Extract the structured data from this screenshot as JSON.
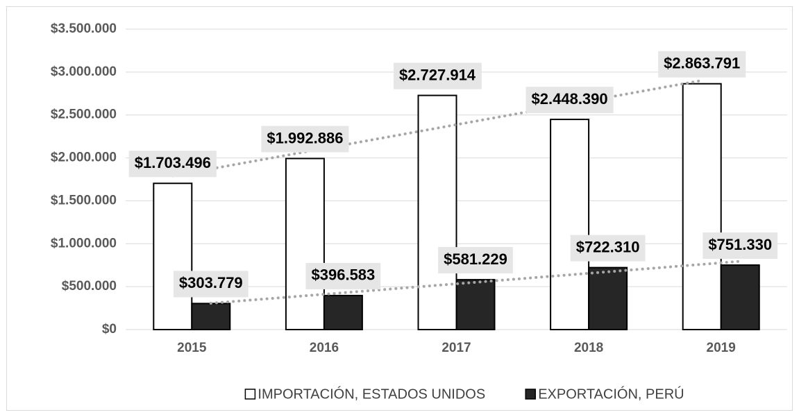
{
  "chart_data": {
    "type": "bar",
    "categories": [
      "2015",
      "2016",
      "2017",
      "2018",
      "2019"
    ],
    "series": [
      {
        "name": "IMPORTACIÓN, ESTADOS UNIDOS",
        "color": "#ffffff",
        "values": [
          1703496,
          1992886,
          2727914,
          2448390,
          2863791
        ],
        "value_labels": [
          "$1.703.496",
          "$1.992.886",
          "$2.727.914",
          "$2.448.390",
          "$2.863.791"
        ]
      },
      {
        "name": "EXPORTACIÓN, PERÚ",
        "color": "#262626",
        "values": [
          303779,
          396583,
          581229,
          722310,
          751330
        ],
        "value_labels": [
          "$303.779",
          "$396.583",
          "$581.229",
          "$722.310",
          "$751.330"
        ]
      }
    ],
    "ylim": [
      0,
      3500000
    ],
    "yticks": [
      {
        "value": 0,
        "label": "$0"
      },
      {
        "value": 500000,
        "label": "$500.000"
      },
      {
        "value": 1000000,
        "label": "$1.000.000"
      },
      {
        "value": 1500000,
        "label": "$1.500.000"
      },
      {
        "value": 2000000,
        "label": "$2.000.000"
      },
      {
        "value": 2500000,
        "label": "$2.500.000"
      },
      {
        "value": 3000000,
        "label": "$3.000.000"
      },
      {
        "value": 3500000,
        "label": "$3.500.000"
      }
    ],
    "grid": true,
    "trendline": "linear",
    "legend": "bottom"
  }
}
